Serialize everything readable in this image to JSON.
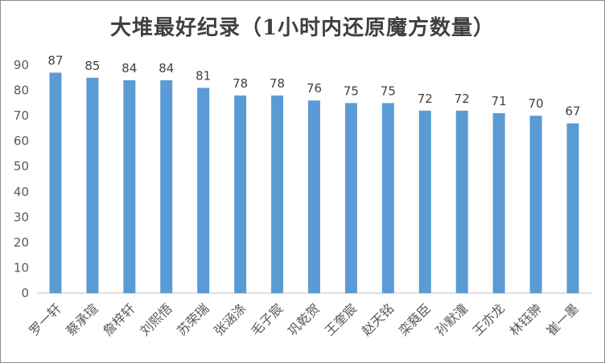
{
  "chart_data": {
    "type": "bar",
    "title": "大堆最好纪录（1小时内还原魔方数量）",
    "xlabel": "",
    "ylabel": "",
    "ylim": [
      0,
      90
    ],
    "yticks": [
      0,
      10,
      20,
      30,
      40,
      50,
      60,
      70,
      80,
      90
    ],
    "grid": false,
    "legend": "none",
    "bar_color": "#5b9bd5",
    "categories": [
      "罗一轩",
      "蔡承瑄",
      "詹梓轩",
      "刘熙悟",
      "苏荣瑞",
      "张涵涤",
      "毛子宸",
      "巩乾贺",
      "王奎宸",
      "赵天铭",
      "栾蕤臣",
      "孙默潼",
      "王亦龙",
      "林钰翀",
      "崔一墨"
    ],
    "values": [
      87,
      85,
      84,
      84,
      81,
      78,
      78,
      76,
      75,
      75,
      72,
      72,
      71,
      70,
      67
    ]
  }
}
